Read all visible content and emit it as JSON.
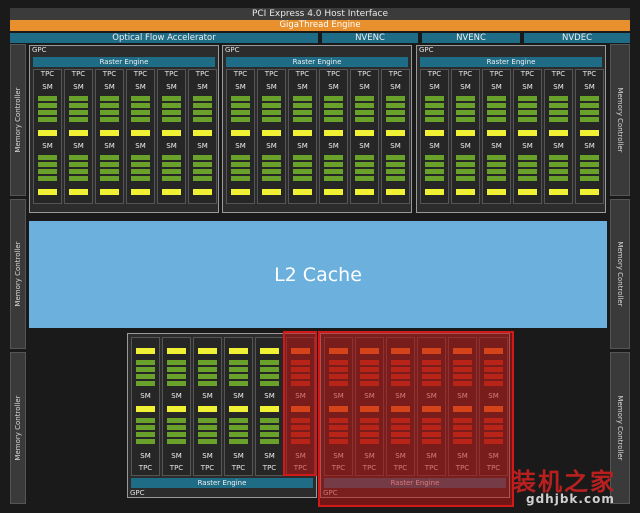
{
  "header": {
    "pci": "PCI Express 4.0 Host Interface",
    "gigathread": "GigaThread Engine"
  },
  "engines": [
    "Optical Flow Accelerator",
    "NVENC",
    "NVENC",
    "NVDEC"
  ],
  "memory_controller_label": "Memory Controller",
  "gpc_label": "GPC",
  "raster_engine_label": "Raster Engine",
  "tpc_label": "TPC",
  "sm_label": "SM",
  "l2_cache_label": "L2 Cache",
  "watermark": {
    "cn": "装机之家",
    "url": "gdhjbk.com"
  },
  "colors": {
    "l2": "#6cb0de",
    "engine": "#1e6c86",
    "gigathread": "#e8902e",
    "highlight": "#d01a1a",
    "sm_core": "#6aa12a",
    "l1": "#f0f034"
  }
}
